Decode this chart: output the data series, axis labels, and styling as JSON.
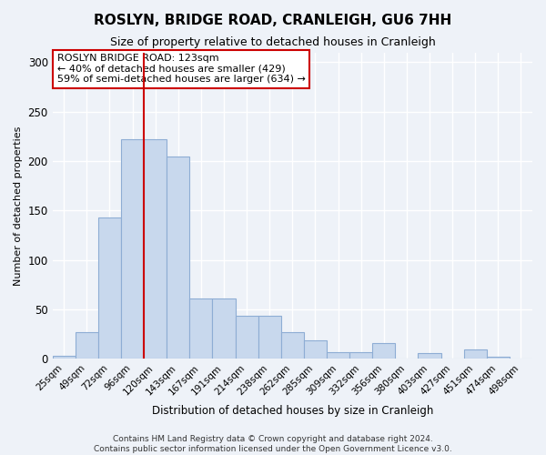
{
  "title": "ROSLYN, BRIDGE ROAD, CRANLEIGH, GU6 7HH",
  "subtitle": "Size of property relative to detached houses in Cranleigh",
  "xlabel": "Distribution of detached houses by size in Cranleigh",
  "ylabel": "Number of detached properties",
  "footnote1": "Contains HM Land Registry data © Crown copyright and database right 2024.",
  "footnote2": "Contains public sector information licensed under the Open Government Licence v3.0.",
  "bar_labels": [
    "25sqm",
    "49sqm",
    "72sqm",
    "96sqm",
    "120sqm",
    "143sqm",
    "167sqm",
    "191sqm",
    "214sqm",
    "238sqm",
    "262sqm",
    "285sqm",
    "309sqm",
    "332sqm",
    "356sqm",
    "380sqm",
    "403sqm",
    "427sqm",
    "451sqm",
    "474sqm",
    "498sqm"
  ],
  "bar_values": [
    3,
    27,
    143,
    222,
    222,
    205,
    61,
    61,
    44,
    44,
    27,
    19,
    7,
    7,
    16,
    0,
    6,
    0,
    10,
    2,
    0
  ],
  "bar_color": "#c8d8ed",
  "bar_edge_color": "#8eadd4",
  "ylim": [
    0,
    310
  ],
  "yticks": [
    0,
    50,
    100,
    150,
    200,
    250,
    300
  ],
  "vline_color": "#cc0000",
  "annotation_title": "ROSLYN BRIDGE ROAD: 123sqm",
  "annotation_line1": "← 40% of detached houses are smaller (429)",
  "annotation_line2": "59% of semi-detached houses are larger (634) →",
  "annotation_box_color": "#ffffff",
  "annotation_box_edge_color": "#cc0000",
  "background_color": "#eef2f8",
  "axes_background_color": "#eef2f8",
  "grid_color": "#ffffff",
  "title_fontsize": 11,
  "subtitle_fontsize": 9,
  "ylabel_fontsize": 8,
  "xlabel_fontsize": 8.5,
  "footnote_fontsize": 6.5
}
